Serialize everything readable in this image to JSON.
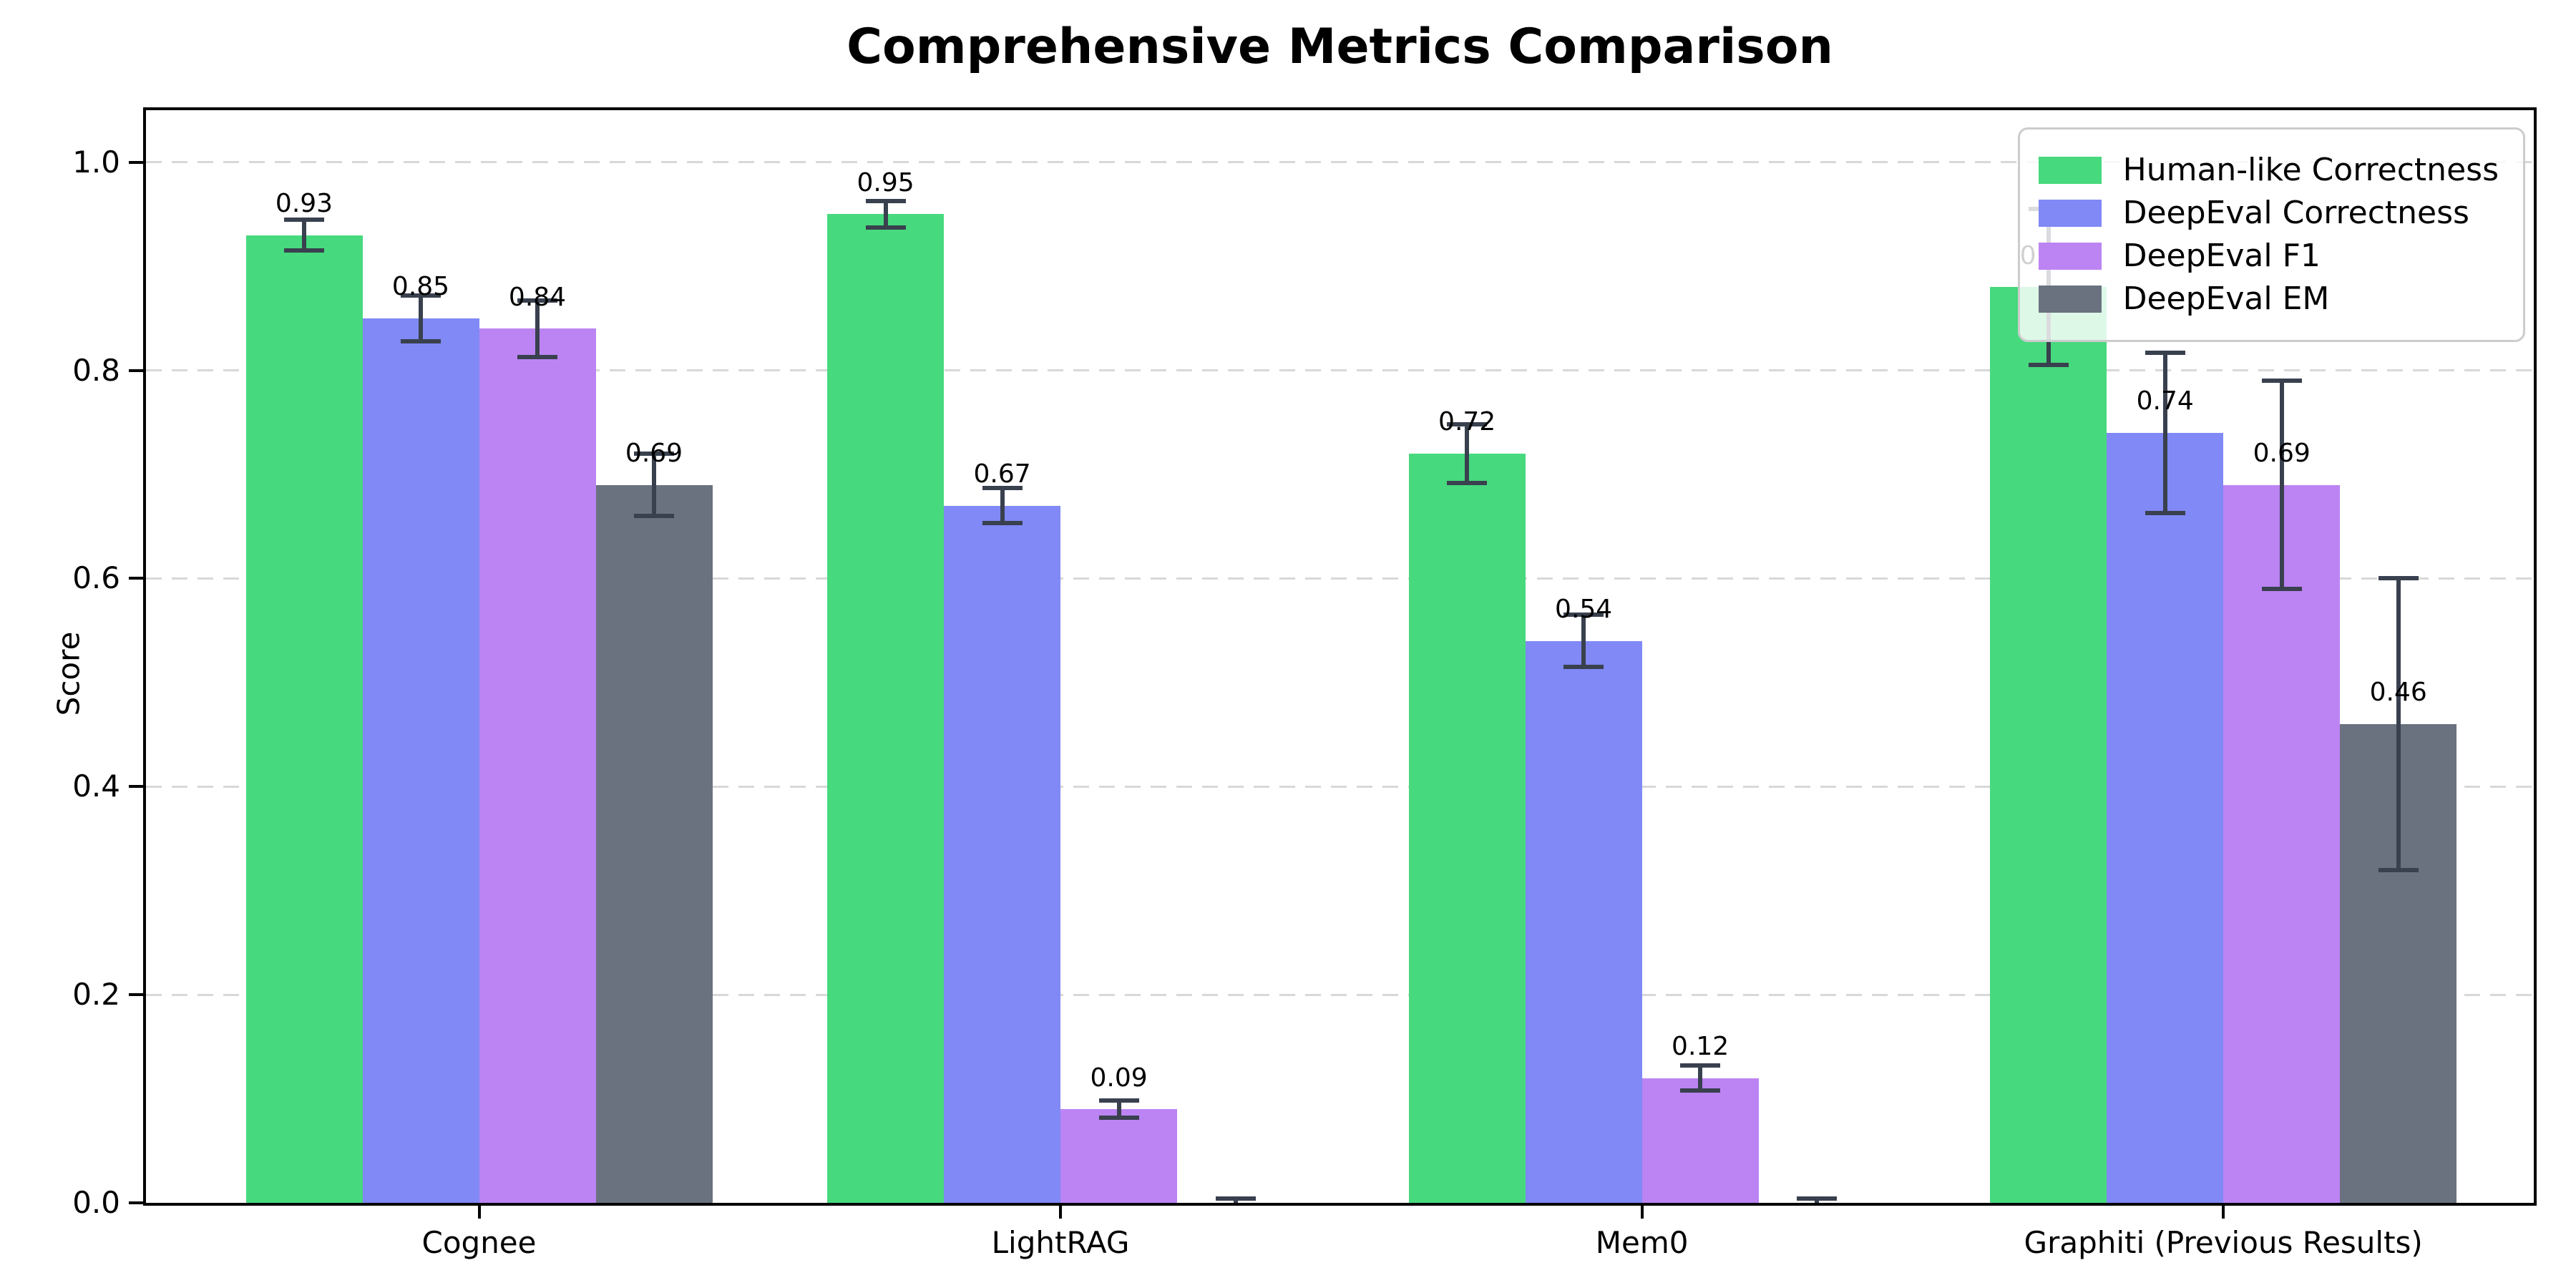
{
  "chart_data": {
    "type": "bar",
    "title": "Comprehensive Metrics Comparison",
    "ylabel": "Score",
    "xlabel": "",
    "categories": [
      "Cognee",
      "LightRAG",
      "Mem0",
      "Graphiti (Previous Results)"
    ],
    "ytick_labels": [
      "0.0",
      "0.2",
      "0.4",
      "0.6",
      "0.8",
      "1.0"
    ],
    "ytick_values": [
      0.0,
      0.2,
      0.4,
      0.6,
      0.8,
      1.0
    ],
    "ylim": [
      0.0,
      1.05
    ],
    "grid": "horizontal-dashed",
    "legend_position": "upper-right",
    "error_bars": true,
    "series": [
      {
        "name": "Human-like Correctness",
        "color": "#47d97e",
        "values": [
          0.93,
          0.95,
          0.72,
          0.88
        ],
        "errors": [
          0.015,
          0.013,
          0.028,
          0.075
        ],
        "labels": [
          "0.93",
          "0.95",
          "0.72",
          "0.88"
        ]
      },
      {
        "name": "DeepEval Correctness",
        "color": "#8089f5",
        "values": [
          0.85,
          0.67,
          0.54,
          0.74
        ],
        "errors": [
          0.022,
          0.017,
          0.025,
          0.077
        ],
        "labels": [
          "0.85",
          "0.67",
          "0.54",
          "0.74"
        ]
      },
      {
        "name": "DeepEval F1",
        "color": "#bc84f3",
        "values": [
          0.84,
          0.09,
          0.12,
          0.69
        ],
        "errors": [
          0.027,
          0.008,
          0.012,
          0.1
        ],
        "labels": [
          "0.84",
          "0.09",
          "0.12",
          "0.69"
        ]
      },
      {
        "name": "DeepEval EM",
        "color": "#6a7280",
        "values": [
          0.69,
          0.0,
          0.0,
          0.46
        ],
        "errors": [
          0.03,
          0.004,
          0.004,
          0.14
        ],
        "labels": [
          "0.69",
          "",
          "",
          "0.46"
        ]
      }
    ],
    "colors": {
      "error_bar": "#39404e",
      "grid": "#d8d8d8",
      "axis": "#000000",
      "legend_border": "#cccccc",
      "background": "#ffffff",
      "text": "#000000"
    }
  }
}
